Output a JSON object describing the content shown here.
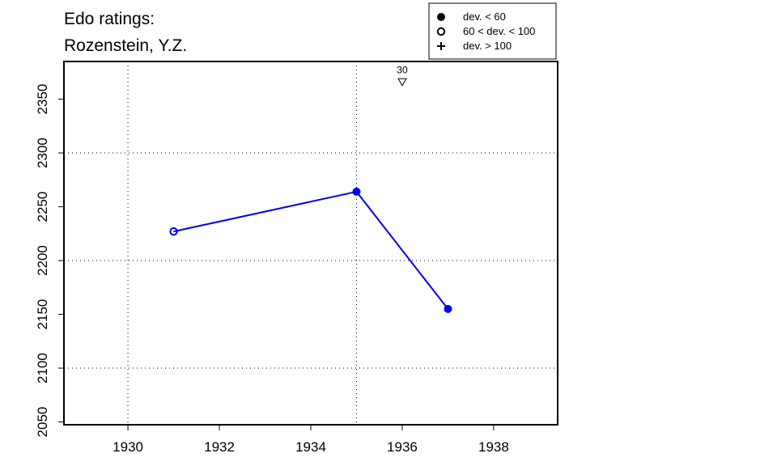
{
  "chart_data": {
    "type": "line",
    "title": "Edo ratings:",
    "subtitle": "Rozenstein, Y.Z.",
    "x": [
      1931,
      1935,
      1937
    ],
    "series": [
      {
        "name": "Rozenstein, Y.Z.",
        "color": "#0000ee",
        "values": [
          2227,
          2264,
          2155
        ],
        "markers": [
          "open",
          "filled",
          "filled"
        ]
      }
    ],
    "xlim": [
      1928.6,
      1939.4
    ],
    "ylim": [
      2047.4,
      2385
    ],
    "xticks": [
      1930,
      1932,
      1934,
      1936,
      1938
    ],
    "yticks": [
      2050,
      2100,
      2150,
      2200,
      2250,
      2300,
      2350
    ],
    "xgrid": [
      1930,
      1935
    ],
    "ygrid": [
      2100,
      2200,
      2300
    ],
    "annotations": [
      {
        "x": 1936,
        "y": 2366,
        "label": "30",
        "marker": "triangle-down"
      }
    ],
    "legend": [
      {
        "label": "dev. < 60",
        "marker": "filled"
      },
      {
        "label": "60 < dev. < 100",
        "marker": "open"
      },
      {
        "label": "dev. > 100",
        "marker": "plus"
      }
    ]
  }
}
